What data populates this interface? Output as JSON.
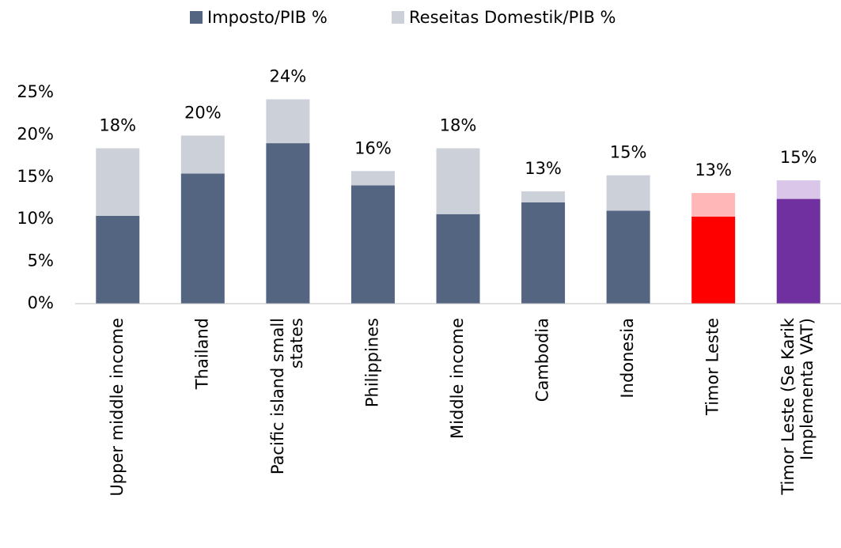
{
  "chart_data": {
    "type": "stacked_bar",
    "categories": [
      "Upper middle income",
      "Thailand",
      "Pacific island small states",
      "Philippines",
      "Middle income",
      "Cambodia",
      "Indonesia",
      "Timor Leste",
      "Timor Leste (Se Karik Implementa VAT)"
    ],
    "series": [
      {
        "name": "Imposto/PIB %",
        "color": "#536580",
        "values": [
          10.4,
          15.4,
          19.0,
          14.0,
          10.6,
          12.0,
          11.0,
          10.3,
          12.4
        ],
        "colors": [
          "#536580",
          "#536580",
          "#536580",
          "#536580",
          "#536580",
          "#536580",
          "#536580",
          "#ff0000",
          "#7030a0"
        ]
      },
      {
        "name": "Reseitas Domestik/PIB %",
        "color": "#ccd0d8",
        "values": [
          8.0,
          4.5,
          5.2,
          1.7,
          7.8,
          1.3,
          4.2,
          2.8,
          2.2
        ],
        "colors": [
          "#ccd0d8",
          "#ccd0d8",
          "#ccd0d8",
          "#ccd0d8",
          "#ccd0d8",
          "#ccd0d8",
          "#ccd0d8",
          "#ffb7b7",
          "#d9c6e8"
        ]
      }
    ],
    "total_labels": [
      "18%",
      "20%",
      "24%",
      "16%",
      "18%",
      "13%",
      "15%",
      "13%",
      "15%"
    ],
    "ylim": [
      0,
      25
    ],
    "yticks": [
      {
        "value": 0,
        "label": "0%"
      },
      {
        "value": 5,
        "label": "5%"
      },
      {
        "value": 10,
        "label": "10%"
      },
      {
        "value": 15,
        "label": "15%"
      },
      {
        "value": 20,
        "label": "20%"
      },
      {
        "value": 25,
        "label": "25%"
      }
    ],
    "grid": false,
    "legend": "top"
  }
}
